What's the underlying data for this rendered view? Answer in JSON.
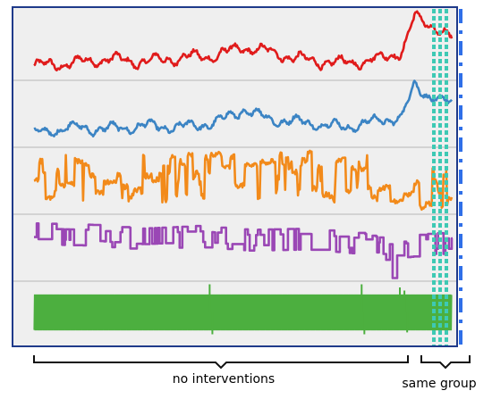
{
  "colors": {
    "frame": "#1f3a8a",
    "panel": "#efefef",
    "divider": "#b7b7b7",
    "highlight": "#3ec9b4",
    "marker": "#2f6fe8",
    "brace": "#111111",
    "series": [
      "#e01b1b",
      "#3b84c4",
      "#f28a1a",
      "#9a47b5",
      "#4caf3f"
    ]
  },
  "captions": {
    "left": "no interventions",
    "right": "same group"
  },
  "chart_data": {
    "type": "line",
    "title": "",
    "xlabel": "",
    "ylabel": "",
    "grid": false,
    "legend": "none",
    "num_points": 460,
    "xlim": [
      0,
      460
    ],
    "regions": [
      {
        "label": "no interventions",
        "x": [
          0,
          440
        ]
      },
      {
        "label": "same group",
        "x": [
          440,
          460
        ]
      }
    ],
    "series": [
      {
        "row": 0,
        "style": "smooth",
        "ylim": [
          0,
          1
        ],
        "knots": [
          [
            0,
            0.18
          ],
          [
            40,
            0.22
          ],
          [
            80,
            0.28
          ],
          [
            120,
            0.24
          ],
          [
            160,
            0.3
          ],
          [
            200,
            0.33
          ],
          [
            230,
            0.45
          ],
          [
            260,
            0.38
          ],
          [
            300,
            0.26
          ],
          [
            340,
            0.22
          ],
          [
            380,
            0.28
          ],
          [
            405,
            0.4
          ],
          [
            418,
            0.88
          ],
          [
            430,
            0.8
          ],
          [
            445,
            0.72
          ],
          [
            460,
            0.55
          ]
        ]
      },
      {
        "row": 1,
        "style": "smooth",
        "ylim": [
          0,
          1
        ],
        "knots": [
          [
            0,
            0.18
          ],
          [
            40,
            0.28
          ],
          [
            80,
            0.25
          ],
          [
            120,
            0.3
          ],
          [
            160,
            0.28
          ],
          [
            200,
            0.35
          ],
          [
            230,
            0.55
          ],
          [
            260,
            0.4
          ],
          [
            300,
            0.35
          ],
          [
            340,
            0.28
          ],
          [
            380,
            0.38
          ],
          [
            405,
            0.45
          ],
          [
            418,
            0.92
          ],
          [
            430,
            0.8
          ],
          [
            445,
            0.7
          ],
          [
            460,
            0.62
          ]
        ]
      },
      {
        "row": 2,
        "style": "noisy",
        "ylim": [
          0,
          1
        ],
        "knots": [
          [
            0,
            0.6
          ],
          [
            60,
            0.5
          ],
          [
            120,
            0.55
          ],
          [
            180,
            0.5
          ],
          [
            240,
            0.6
          ],
          [
            300,
            0.55
          ],
          [
            360,
            0.5
          ],
          [
            420,
            0.45
          ],
          [
            440,
            0.4
          ],
          [
            460,
            0.4
          ]
        ]
      },
      {
        "row": 3,
        "style": "step",
        "ylim": [
          0,
          1
        ],
        "knots": [
          [
            0,
            0.7
          ],
          [
            60,
            0.68
          ],
          [
            120,
            0.62
          ],
          [
            180,
            0.66
          ],
          [
            240,
            0.6
          ],
          [
            300,
            0.62
          ],
          [
            360,
            0.55
          ],
          [
            390,
            0.45
          ],
          [
            395,
            0.1
          ],
          [
            410,
            0.5
          ],
          [
            440,
            0.55
          ],
          [
            460,
            0.55
          ]
        ]
      },
      {
        "row": 4,
        "style": "oscillation",
        "ylim": [
          0,
          1
        ],
        "knots": [
          [
            0,
            0.5
          ],
          [
            460,
            0.5
          ]
        ],
        "spikes": [
          [
            193,
            0.95
          ],
          [
            360,
            0.95
          ],
          [
            363,
            0.15
          ],
          [
            196,
            0.15
          ],
          [
            402,
            0.9
          ],
          [
            407,
            0.85
          ],
          [
            410,
            0.18
          ]
        ]
      }
    ]
  }
}
